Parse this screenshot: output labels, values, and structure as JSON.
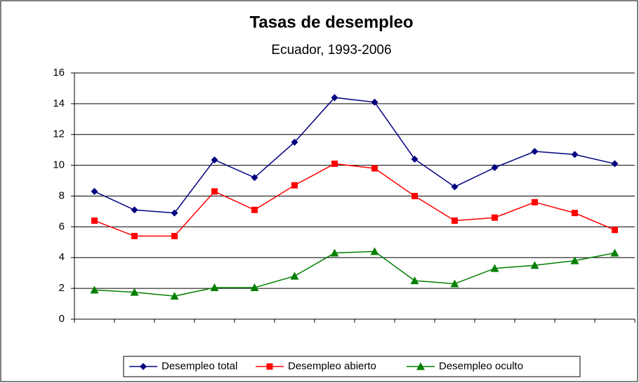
{
  "chart_data": {
    "type": "line",
    "title": "Tasas de desempleo",
    "subtitle": "Ecuador, 1993-2006",
    "categories": [
      null,
      null,
      null,
      null,
      null,
      null,
      null,
      null,
      null,
      null,
      null,
      null,
      null,
      null
    ],
    "series": [
      {
        "name": "Desempleo total",
        "color": "#000080",
        "marker": "diamond",
        "values": [
          8.3,
          7.1,
          6.9,
          10.35,
          9.2,
          11.5,
          14.4,
          14.1,
          10.4,
          8.6,
          9.85,
          10.9,
          10.7,
          10.1
        ]
      },
      {
        "name": "Desempleo abierto",
        "color": "#ff0000",
        "marker": "square",
        "values": [
          6.4,
          5.4,
          5.4,
          8.3,
          7.1,
          8.7,
          10.1,
          9.8,
          8.0,
          6.4,
          6.6,
          7.6,
          6.9,
          5.8
        ]
      },
      {
        "name": "Desempleo oculto",
        "color": "#008000",
        "marker": "triangle",
        "values": [
          1.9,
          1.75,
          1.5,
          2.05,
          2.05,
          2.8,
          4.3,
          4.4,
          2.5,
          2.3,
          3.3,
          3.5,
          3.8,
          4.3
        ]
      }
    ],
    "ylim": [
      0,
      16
    ],
    "yticks": [
      0,
      2,
      4,
      6,
      8,
      10,
      12,
      14,
      16
    ],
    "grid": true,
    "legend": "bottom"
  }
}
